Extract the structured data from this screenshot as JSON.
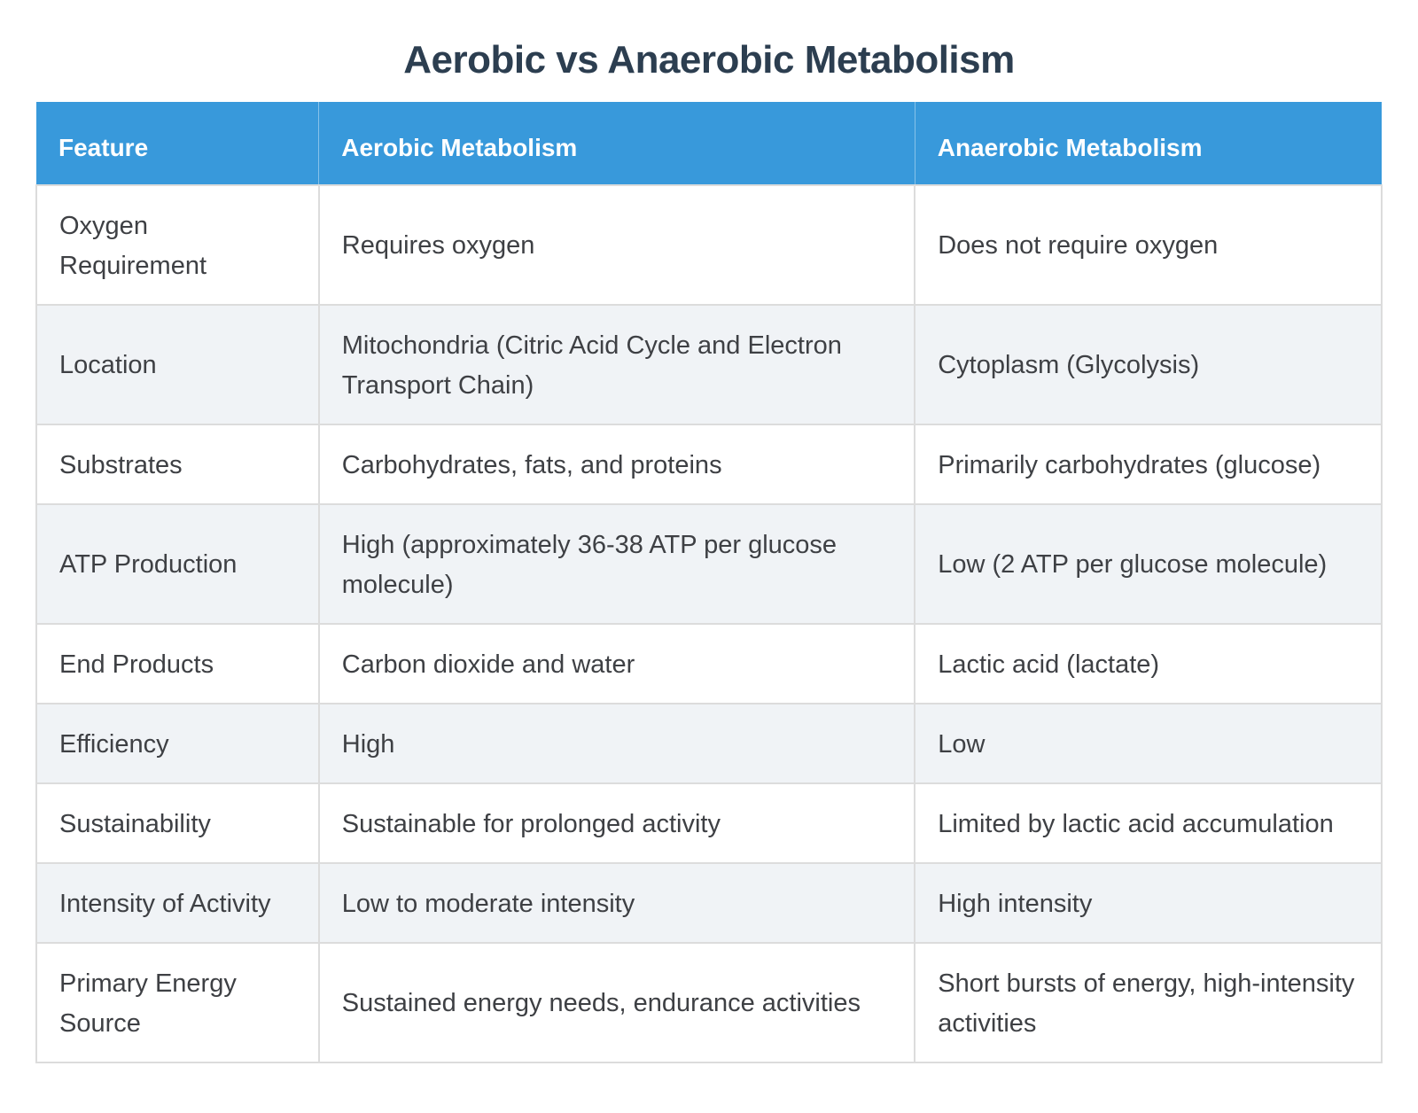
{
  "colors": {
    "header_bg": "#3899db",
    "header_text": "#ffffff",
    "title_text": "#2c3e50",
    "stripe_bg": "#f0f3f6",
    "grid_border": "#dcdcdc",
    "cell_text": "#3e4044"
  },
  "chart_data": {
    "type": "table",
    "title": "Aerobic vs Anaerobic Metabolism",
    "columns": [
      "Feature",
      "Aerobic Metabolism",
      "Anaerobic Metabolism"
    ],
    "rows": [
      [
        "Oxygen Requirement",
        "Requires oxygen",
        "Does not require oxygen"
      ],
      [
        "Location",
        "Mitochondria (Citric Acid Cycle and Electron Transport Chain)",
        "Cytoplasm (Glycolysis)"
      ],
      [
        "Substrates",
        "Carbohydrates, fats, and proteins",
        "Primarily carbohydrates (glucose)"
      ],
      [
        "ATP Production",
        "High (approximately 36-38 ATP per glucose molecule)",
        "Low (2 ATP per glucose molecule)"
      ],
      [
        "End Products",
        "Carbon dioxide and water",
        "Lactic acid (lactate)"
      ],
      [
        "Efficiency",
        "High",
        "Low"
      ],
      [
        "Sustainability",
        "Sustainable for prolonged activity",
        "Limited by lactic acid accumulation"
      ],
      [
        "Intensity of Activity",
        "Low to moderate intensity",
        "High intensity"
      ],
      [
        "Primary Energy Source",
        "Sustained energy needs, endurance activities",
        "Short bursts of energy, high-intensity activities"
      ]
    ],
    "layout": {
      "header_position": "top",
      "striped_rows": "even",
      "grid": true
    }
  }
}
